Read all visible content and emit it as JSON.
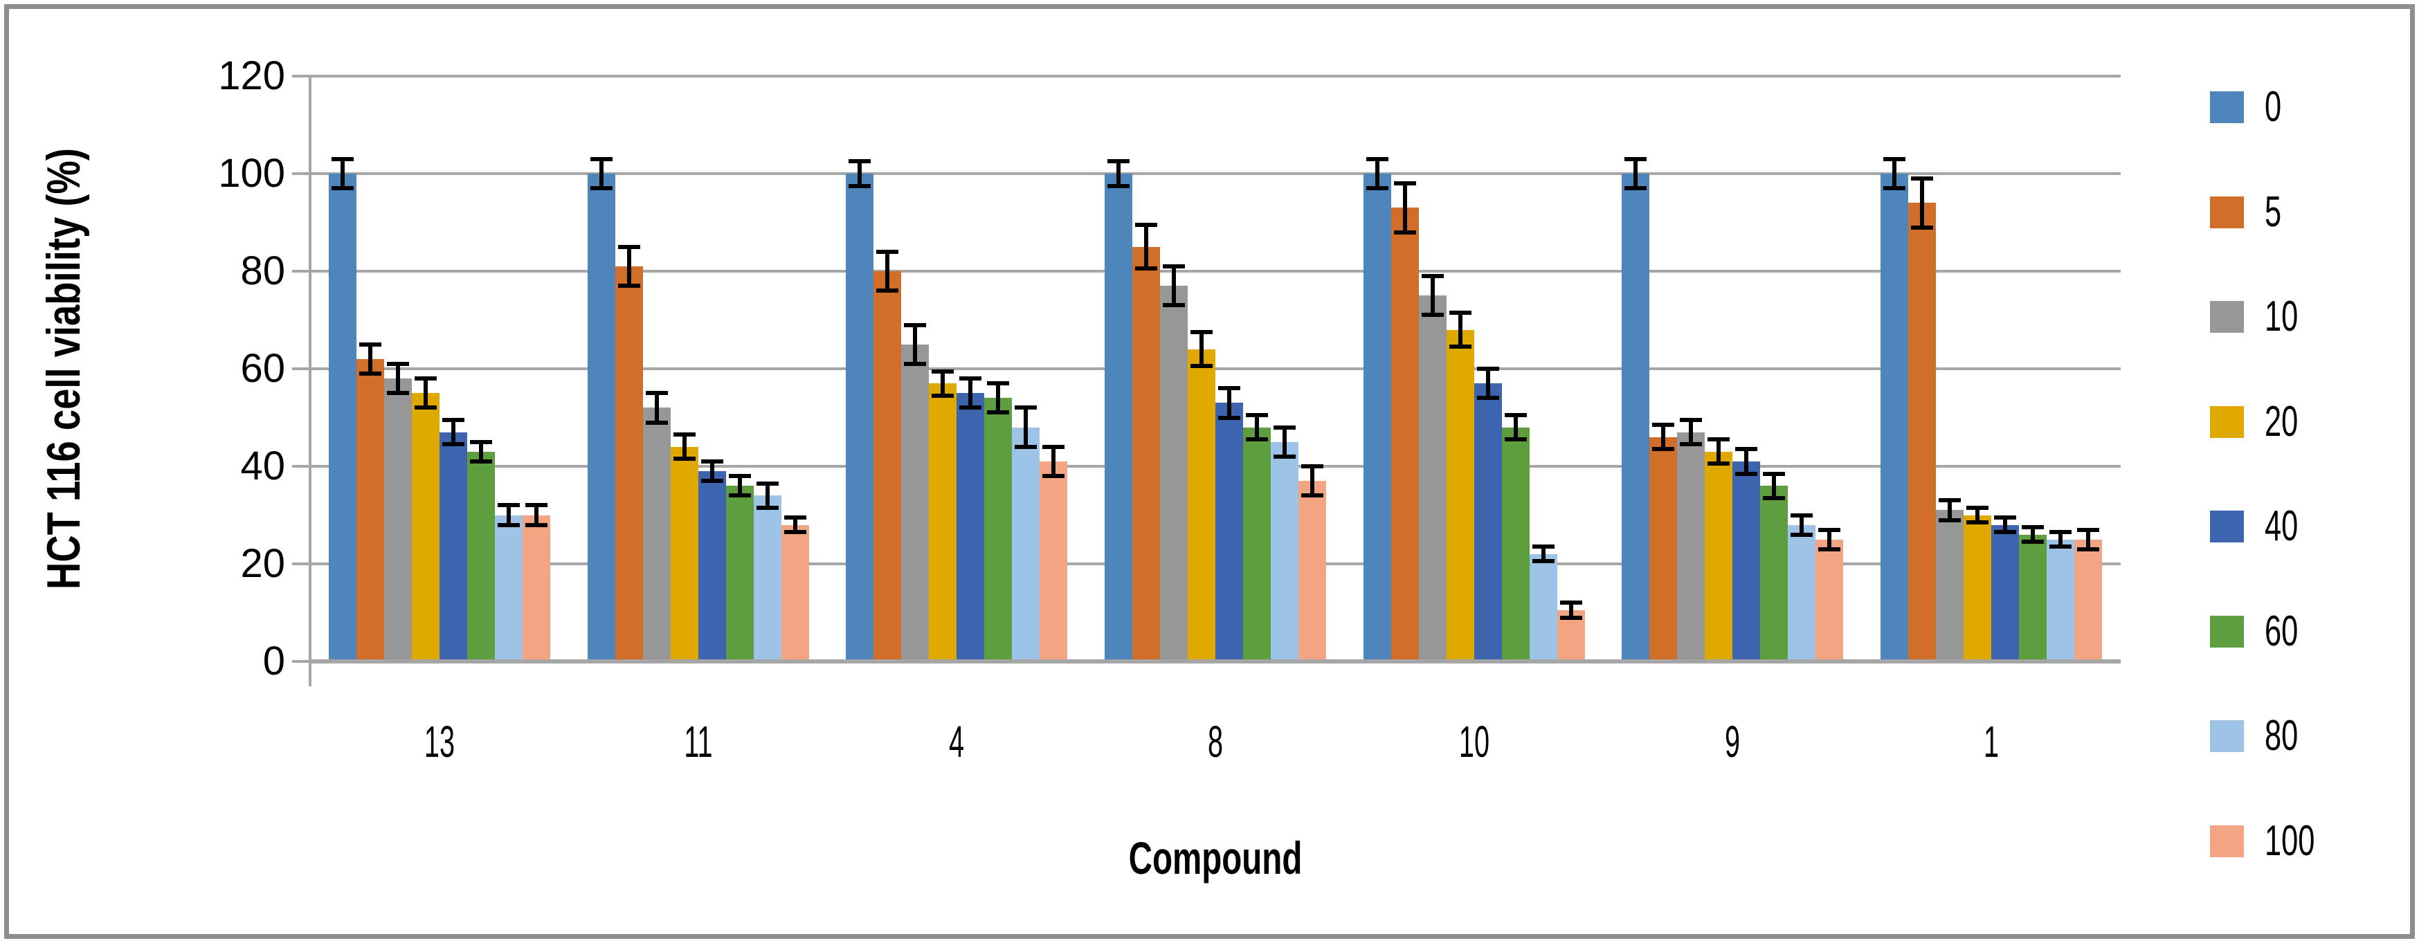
{
  "chart_data": {
    "type": "bar",
    "title": "",
    "xlabel": "Compound",
    "ylabel": "HCT 116 cell viability (%)",
    "ylim": [
      0,
      120
    ],
    "yticks": [
      0,
      20,
      40,
      60,
      80,
      100,
      120
    ],
    "grid": "horizontal",
    "legend_position": "right",
    "error_bars": true,
    "categories": [
      "13",
      "11",
      "4",
      "8",
      "10",
      "9",
      "1"
    ],
    "series": [
      {
        "name": "0",
        "color": "#4E86BC",
        "values": [
          100,
          100,
          100,
          100,
          100,
          100,
          100
        ],
        "errors": [
          3,
          3,
          2.5,
          2.5,
          3,
          3,
          3
        ]
      },
      {
        "name": "5",
        "color": "#D06E2A",
        "values": [
          62,
          81,
          80,
          85,
          93,
          46,
          94
        ],
        "errors": [
          3,
          4,
          4,
          4.5,
          5,
          2.5,
          5
        ]
      },
      {
        "name": "10",
        "color": "#979797",
        "values": [
          58,
          52,
          65,
          77,
          75,
          47,
          31
        ],
        "errors": [
          3,
          3,
          4,
          4,
          4,
          2.5,
          2
        ]
      },
      {
        "name": "20",
        "color": "#E0A900",
        "values": [
          55,
          44,
          57,
          64,
          68,
          43,
          30
        ],
        "errors": [
          3,
          2.5,
          2.5,
          3.5,
          3.5,
          2.5,
          1.5
        ]
      },
      {
        "name": "40",
        "color": "#3D64AE",
        "values": [
          47,
          39,
          55,
          53,
          57,
          41,
          28
        ],
        "errors": [
          2.5,
          2,
          3,
          3,
          3,
          2.5,
          1.5
        ]
      },
      {
        "name": "60",
        "color": "#5F9E3E",
        "values": [
          43,
          36,
          54,
          48,
          48,
          36,
          26
        ],
        "errors": [
          2,
          2,
          3,
          2.5,
          2.5,
          2.5,
          1.5
        ]
      },
      {
        "name": "80",
        "color": "#9DC3E6",
        "values": [
          30,
          34,
          48,
          45,
          22,
          28,
          25
        ],
        "errors": [
          2,
          2.5,
          4,
          3,
          1.5,
          2,
          1.5
        ]
      },
      {
        "name": "100",
        "color": "#F3A583",
        "values": [
          30,
          28,
          41,
          37,
          10.5,
          25,
          25
        ],
        "errors": [
          2,
          1.5,
          3,
          3,
          1.5,
          2,
          2
        ]
      }
    ],
    "colors": {
      "gridline": "#A6A6A6",
      "axis": "#A6A6A6",
      "error_bar": "#000000",
      "frame_border": "#8E8E8E",
      "background": "#FFFFFF"
    }
  }
}
